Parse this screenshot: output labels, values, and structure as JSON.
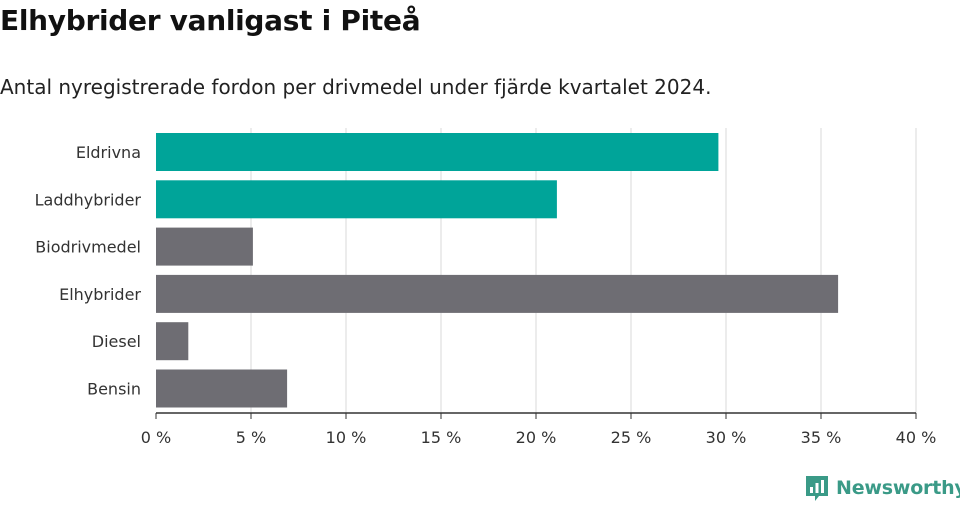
{
  "title": "Elhybrider vanligast i Piteå",
  "subtitle": "Antal nyregistrerade fordon per drivmedel under fjärde kvartalet 2024.",
  "brand": "Newsworthy",
  "colors": {
    "highlight": "#00a499",
    "default": "#6e6d73",
    "grid": "#d9d9d9",
    "axis": "#333333",
    "brand": "#3a9a87"
  },
  "chart_data": {
    "type": "bar",
    "orientation": "horizontal",
    "categories": [
      "Eldrivna",
      "Laddhybrider",
      "Biodrivmedel",
      "Elhybrider",
      "Diesel",
      "Bensin"
    ],
    "values": [
      29.6,
      21.1,
      5.1,
      35.9,
      1.7,
      6.9
    ],
    "highlighted": [
      true,
      true,
      false,
      false,
      false,
      false
    ],
    "xlim": [
      0,
      40
    ],
    "x_ticks": [
      0,
      5,
      10,
      15,
      20,
      25,
      30,
      35,
      40
    ],
    "x_tick_labels": [
      "0 %",
      "5 %",
      "10 %",
      "15 %",
      "20 %",
      "25 %",
      "30 %",
      "35 %",
      "40 %"
    ],
    "grid": true,
    "xlabel": "",
    "ylabel": ""
  }
}
